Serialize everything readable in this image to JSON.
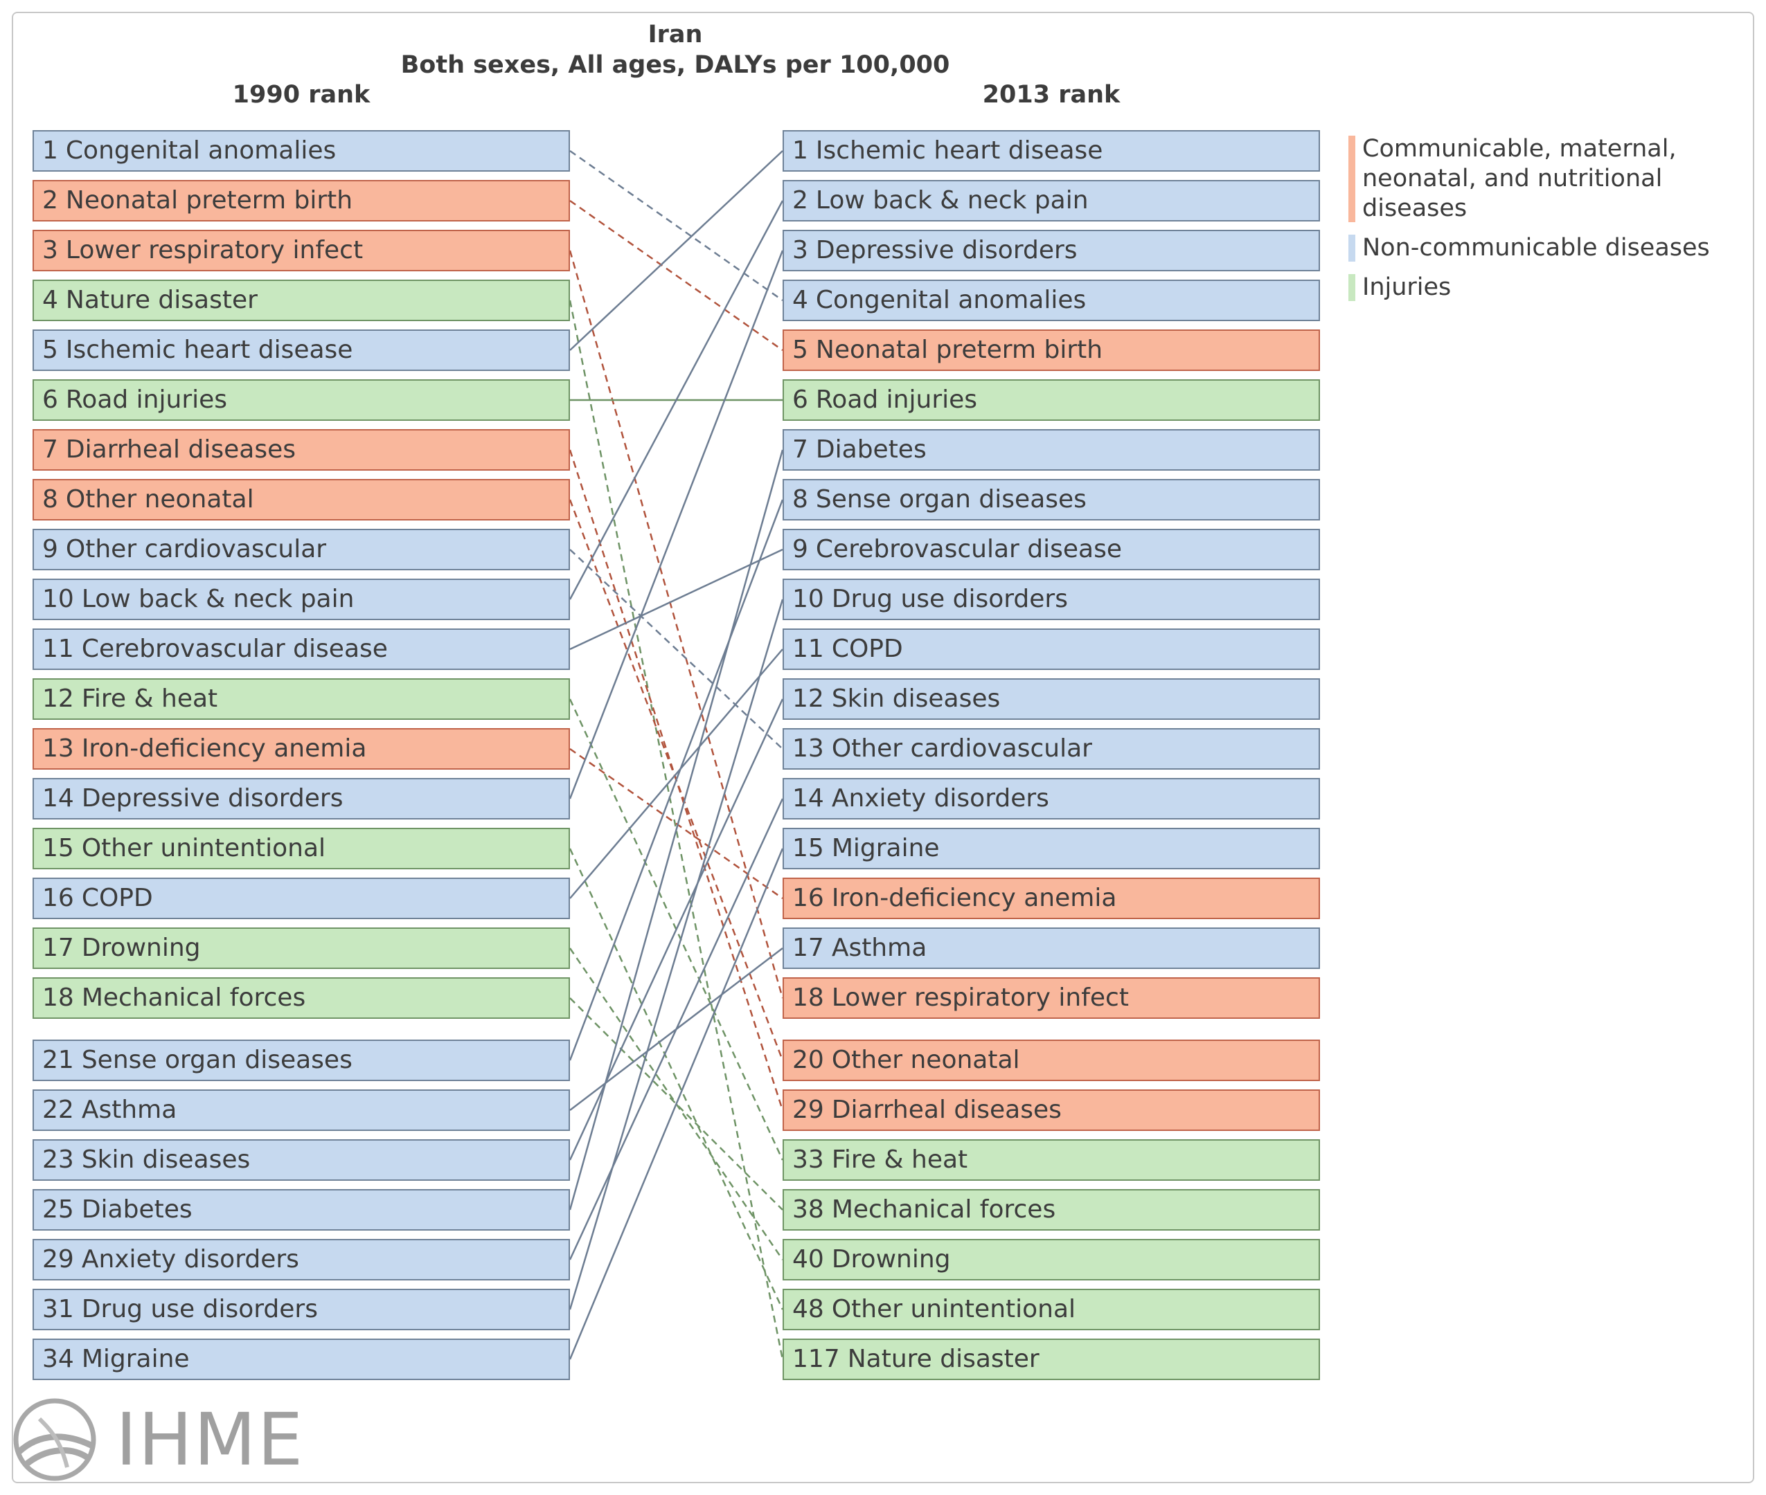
{
  "chart_data": {
    "type": "table",
    "title": "Iran",
    "subtitle": "Both sexes, All ages, DALYs per 100,000",
    "left_header": "1990 rank",
    "right_header": "2013 rank",
    "colors": {
      "communicable": {
        "fill": "#f9b79c",
        "border": "#c0634a",
        "line": "#b1533c"
      },
      "noncommunicable": {
        "fill": "#c6d9ef",
        "border": "#6f8298",
        "line": "#6d7d92"
      },
      "injuries": {
        "fill": "#c8e8c0",
        "border": "#6f9465",
        "line": "#6e9365"
      }
    },
    "legend": [
      {
        "key": "communicable",
        "label": "Communicable, maternal, neonatal, and nutritional diseases",
        "lines": [
          "Communicable, maternal,",
          "neonatal, and nutritional",
          "diseases"
        ]
      },
      {
        "key": "noncommunicable",
        "label": "Non-communicable diseases",
        "lines": [
          "Non-communicable diseases"
        ]
      },
      {
        "key": "injuries",
        "label": "Injuries",
        "lines": [
          "Injuries"
        ]
      }
    ],
    "left": [
      {
        "rank": "1",
        "name": "Congenital anomalies",
        "cat": "noncommunicable"
      },
      {
        "rank": "2",
        "name": "Neonatal preterm birth",
        "cat": "communicable"
      },
      {
        "rank": "3",
        "name": "Lower respiratory infect",
        "cat": "communicable"
      },
      {
        "rank": "4",
        "name": "Nature disaster",
        "cat": "injuries"
      },
      {
        "rank": "5",
        "name": "Ischemic heart disease",
        "cat": "noncommunicable"
      },
      {
        "rank": "6",
        "name": "Road injuries",
        "cat": "injuries"
      },
      {
        "rank": "7",
        "name": "Diarrheal diseases",
        "cat": "communicable"
      },
      {
        "rank": "8",
        "name": "Other neonatal",
        "cat": "communicable"
      },
      {
        "rank": "9",
        "name": "Other cardiovascular",
        "cat": "noncommunicable"
      },
      {
        "rank": "10",
        "name": "Low back & neck pain",
        "cat": "noncommunicable"
      },
      {
        "rank": "11",
        "name": "Cerebrovascular disease",
        "cat": "noncommunicable"
      },
      {
        "rank": "12",
        "name": "Fire & heat",
        "cat": "injuries"
      },
      {
        "rank": "13",
        "name": "Iron-deficiency anemia",
        "cat": "communicable"
      },
      {
        "rank": "14",
        "name": "Depressive disorders",
        "cat": "noncommunicable"
      },
      {
        "rank": "15",
        "name": "Other unintentional",
        "cat": "injuries"
      },
      {
        "rank": "16",
        "name": "COPD",
        "cat": "noncommunicable"
      },
      {
        "rank": "17",
        "name": "Drowning",
        "cat": "injuries"
      },
      {
        "rank": "18",
        "name": "Mechanical forces",
        "cat": "injuries"
      },
      {
        "rank": "21",
        "name": "Sense organ diseases",
        "cat": "noncommunicable"
      },
      {
        "rank": "22",
        "name": "Asthma",
        "cat": "noncommunicable"
      },
      {
        "rank": "23",
        "name": "Skin diseases",
        "cat": "noncommunicable"
      },
      {
        "rank": "25",
        "name": "Diabetes",
        "cat": "noncommunicable"
      },
      {
        "rank": "29",
        "name": "Anxiety disorders",
        "cat": "noncommunicable"
      },
      {
        "rank": "31",
        "name": "Drug use disorders",
        "cat": "noncommunicable"
      },
      {
        "rank": "34",
        "name": "Migraine",
        "cat": "noncommunicable"
      }
    ],
    "right": [
      {
        "rank": "1",
        "name": "Ischemic heart disease",
        "cat": "noncommunicable"
      },
      {
        "rank": "2",
        "name": "Low back & neck pain",
        "cat": "noncommunicable"
      },
      {
        "rank": "3",
        "name": "Depressive disorders",
        "cat": "noncommunicable"
      },
      {
        "rank": "4",
        "name": "Congenital anomalies",
        "cat": "noncommunicable"
      },
      {
        "rank": "5",
        "name": "Neonatal preterm birth",
        "cat": "communicable"
      },
      {
        "rank": "6",
        "name": "Road injuries",
        "cat": "injuries"
      },
      {
        "rank": "7",
        "name": "Diabetes",
        "cat": "noncommunicable"
      },
      {
        "rank": "8",
        "name": "Sense organ diseases",
        "cat": "noncommunicable"
      },
      {
        "rank": "9",
        "name": "Cerebrovascular disease",
        "cat": "noncommunicable"
      },
      {
        "rank": "10",
        "name": "Drug use disorders",
        "cat": "noncommunicable"
      },
      {
        "rank": "11",
        "name": "COPD",
        "cat": "noncommunicable"
      },
      {
        "rank": "12",
        "name": "Skin diseases",
        "cat": "noncommunicable"
      },
      {
        "rank": "13",
        "name": "Other cardiovascular",
        "cat": "noncommunicable"
      },
      {
        "rank": "14",
        "name": "Anxiety disorders",
        "cat": "noncommunicable"
      },
      {
        "rank": "15",
        "name": "Migraine",
        "cat": "noncommunicable"
      },
      {
        "rank": "16",
        "name": "Iron-deficiency anemia",
        "cat": "communicable"
      },
      {
        "rank": "17",
        "name": "Asthma",
        "cat": "noncommunicable"
      },
      {
        "rank": "18",
        "name": "Lower respiratory infect",
        "cat": "communicable"
      },
      {
        "rank": "20",
        "name": "Other neonatal",
        "cat": "communicable"
      },
      {
        "rank": "29",
        "name": "Diarrheal diseases",
        "cat": "communicable"
      },
      {
        "rank": "33",
        "name": "Fire & heat",
        "cat": "injuries"
      },
      {
        "rank": "38",
        "name": "Mechanical forces",
        "cat": "injuries"
      },
      {
        "rank": "40",
        "name": "Drowning",
        "cat": "injuries"
      },
      {
        "rank": "48",
        "name": "Other unintentional",
        "cat": "injuries"
      },
      {
        "rank": "117",
        "name": "Nature disaster",
        "cat": "injuries"
      }
    ]
  },
  "logo": {
    "text": "IHME"
  }
}
